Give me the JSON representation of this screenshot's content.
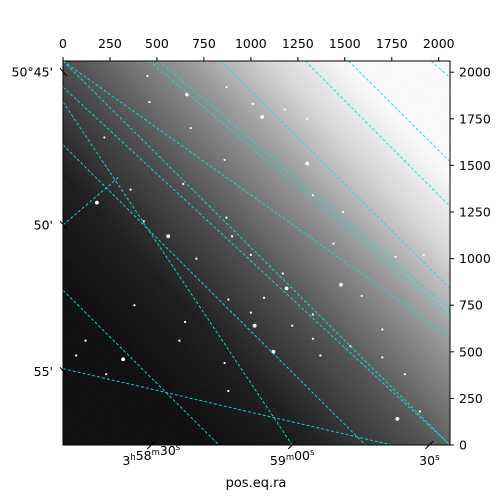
{
  "chart_data": {
    "type": "heatmap",
    "title": "",
    "xlabel": "pos.eq.ra",
    "ylabel": "",
    "pixel_axes": {
      "x_range": [
        0,
        2060
      ],
      "y_range": [
        0,
        2060
      ],
      "x_ticks": [
        0,
        250,
        500,
        750,
        1000,
        1250,
        1500,
        1750,
        2000
      ],
      "y_ticks": [
        0,
        250,
        500,
        750,
        1000,
        1250,
        1500,
        1750,
        2000
      ],
      "x_tick_labels": [
        "0",
        "250",
        "500",
        "750",
        "1000",
        "1250",
        "1500",
        "1750",
        "2000"
      ],
      "y_tick_labels": [
        "0",
        "250",
        "500",
        "750",
        "1000",
        "1250",
        "1500",
        "1750",
        "2000"
      ]
    },
    "world_axes": {
      "ra_ticks": [
        {
          "h": "3",
          "m": "58",
          "s": "30",
          "px": 470
        },
        {
          "h": "",
          "m": "59",
          "s": "00",
          "px": 1220
        },
        {
          "h": "",
          "m": "",
          "s": "30",
          "px": 1950
        }
      ],
      "dec_ticks": [
        {
          "text": "50°45'",
          "py": 2000
        },
        {
          "text": "50'",
          "py": 1180
        },
        {
          "text": "55'",
          "py": 395
        }
      ]
    },
    "grid": true,
    "grid_color": "#00e5e5",
    "grid_style": "dashed",
    "grid_lines": [
      {
        "from": [
          840,
          2060
        ],
        "to": [
          2060,
          840
        ]
      },
      {
        "from": [
          0,
          1610
        ],
        "to": [
          1610,
          0
        ]
      },
      {
        "from": [
          0,
          830
        ],
        "to": [
          830,
          0
        ]
      },
      {
        "from": [
          1520,
          2060
        ],
        "to": [
          2060,
          1520
        ]
      },
      {
        "from": [
          0,
          2060
        ],
        "to": [
          2060,
          0
        ]
      },
      {
        "from": [
          0,
          1840
        ],
        "to": [
          1220,
          0
        ]
      },
      {
        "from": [
          460,
          2060
        ],
        "to": [
          2060,
          690
        ]
      },
      {
        "from": [
          1960,
          2060
        ],
        "to": [
          2060,
          1970
        ]
      },
      {
        "from": [
          0,
          1180
        ],
        "to": [
          300,
          1440
        ]
      },
      {
        "from": [
          0,
          1920
        ],
        "to": [
          2060,
          0
        ]
      },
      {
        "from": [
          510,
          2060
        ],
        "to": [
          2060,
          730
        ]
      },
      {
        "from": [
          0,
          410
        ],
        "to": [
          1750,
          0
        ]
      },
      {
        "from": [
          0,
          2060
        ],
        "to": [
          2060,
          580
        ]
      },
      {
        "from": [
          1290,
          2060
        ],
        "to": [
          2060,
          1280
        ]
      }
    ],
    "image": {
      "colormap": "gray",
      "gradient": "dark lower-left to bright upper-right",
      "stars": [
        [
          660,
          1880
        ],
        [
          450,
          1980
        ],
        [
          870,
          1920
        ],
        [
          1010,
          1830
        ],
        [
          460,
          1840
        ],
        [
          1060,
          1760
        ],
        [
          1180,
          1800
        ],
        [
          1300,
          1750
        ],
        [
          680,
          1700
        ],
        [
          860,
          1530
        ],
        [
          1300,
          1510
        ],
        [
          640,
          1400
        ],
        [
          1330,
          1340
        ],
        [
          870,
          1220
        ],
        [
          360,
          1370
        ],
        [
          180,
          1300
        ],
        [
          1490,
          1250
        ],
        [
          900,
          1120
        ],
        [
          710,
          1000
        ],
        [
          1170,
          920
        ],
        [
          1190,
          840
        ],
        [
          880,
          780
        ],
        [
          1070,
          790
        ],
        [
          1330,
          700
        ],
        [
          1000,
          710
        ],
        [
          1480,
          860
        ],
        [
          1590,
          800
        ],
        [
          1700,
          620
        ],
        [
          1330,
          570
        ],
        [
          1530,
          530
        ],
        [
          1120,
          500
        ],
        [
          860,
          440
        ],
        [
          650,
          660
        ],
        [
          620,
          560
        ],
        [
          380,
          750
        ],
        [
          320,
          460
        ],
        [
          230,
          380
        ],
        [
          120,
          560
        ],
        [
          70,
          480
        ],
        [
          880,
          290
        ],
        [
          1020,
          640
        ],
        [
          1220,
          640
        ],
        [
          1370,
          480
        ],
        [
          1700,
          470
        ],
        [
          1820,
          380
        ],
        [
          1780,
          140
        ],
        [
          1900,
          180
        ],
        [
          1440,
          1080
        ],
        [
          1770,
          1010
        ],
        [
          1920,
          1020
        ],
        [
          560,
          1120
        ],
        [
          1000,
          1020
        ],
        [
          220,
          1650
        ],
        [
          430,
          1200
        ]
      ]
    }
  }
}
